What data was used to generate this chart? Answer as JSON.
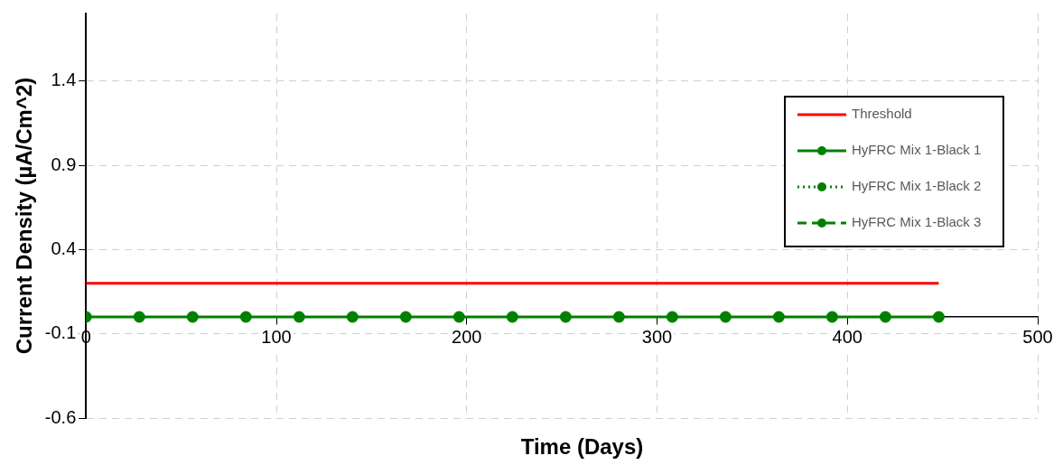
{
  "chart_data": {
    "type": "line",
    "xlabel": "Time (Days)",
    "ylabel": "Current Density (µA/Cm^2)",
    "xlim": [
      0,
      500
    ],
    "xticks": [
      0,
      100,
      200,
      300,
      400,
      500
    ],
    "ylim": [
      -0.6,
      1.8
    ],
    "yticks": [
      -0.6,
      -0.1,
      0.4,
      0.9,
      1.4
    ],
    "grid": true,
    "legend": "top right",
    "series": [
      {
        "name": "Threshold",
        "color": "#ff0000",
        "x": [
          0,
          448
        ],
        "values": [
          0.2,
          0.2
        ],
        "marker": "none",
        "line_style": "solid"
      },
      {
        "name": "HyFRC Mix 1-Black 1",
        "color": "#008000",
        "x": [
          0,
          28,
          56,
          84,
          112,
          140,
          168,
          196,
          224,
          252,
          280,
          308,
          336,
          364,
          392,
          420,
          448
        ],
        "values": [
          0,
          0,
          0,
          0,
          0,
          0,
          0,
          0,
          0,
          0,
          0,
          0,
          0,
          0,
          0,
          0,
          0
        ],
        "marker": "circle",
        "line_style": "solid"
      },
      {
        "name": "HyFRC Mix 1-Black 2",
        "color": "#008000",
        "values": [
          null,
          null,
          null,
          null,
          null,
          null,
          null,
          null,
          null,
          null,
          null,
          null,
          null,
          null,
          null,
          null,
          null
        ],
        "marker": "circle",
        "line_style": "dotted"
      },
      {
        "name": "HyFRC Mix 1-Black 3",
        "color": "#008000",
        "values": [
          null,
          null,
          null,
          null,
          null,
          null,
          null,
          null,
          null,
          null,
          null,
          null,
          null,
          null,
          null,
          null,
          null
        ],
        "marker": "circle",
        "line_style": "dashed"
      }
    ]
  }
}
